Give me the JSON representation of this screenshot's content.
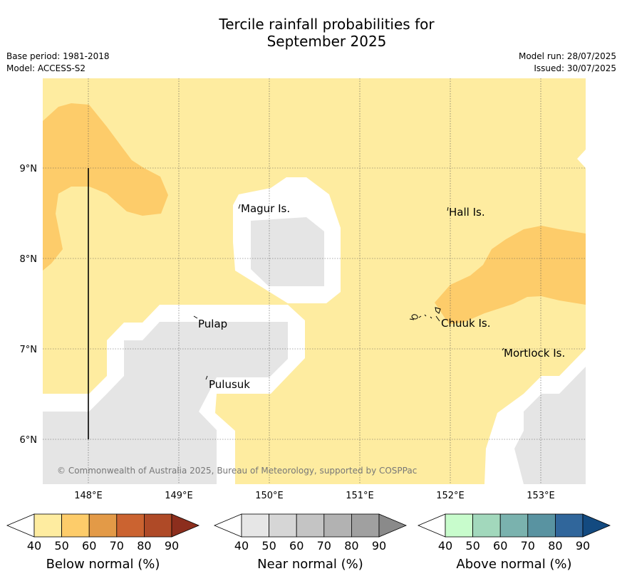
{
  "header": {
    "title_line1": "Tercile rainfall probabilities for",
    "title_line2": "September 2025",
    "base_period": "Base period: 1981-2018",
    "model": "Model: ACCESS-S2",
    "model_run": "Model run: 28/07/2025",
    "issued": "Issued: 30/07/2025"
  },
  "map": {
    "lat_labels": [
      "9°N",
      "8°N",
      "7°N",
      "6°N"
    ],
    "lon_labels": [
      "148°E",
      "149°E",
      "150°E",
      "151°E",
      "152°E",
      "153°E"
    ],
    "places": [
      {
        "name": "Magur Is."
      },
      {
        "name": "Hall Is."
      },
      {
        "name": "Pulap"
      },
      {
        "name": "Chuuk Is."
      },
      {
        "name": "Mortlock Is."
      },
      {
        "name": "Pulusuk"
      }
    ],
    "copyright": "© Commonwealth of Australia 2025, Bureau of Meteorology, supported by COSPPac",
    "colors": {
      "below_40_50": "#feeca0",
      "below_50_60": "#fdcc6a",
      "near_40_50": "#e5e5e5"
    }
  },
  "legend": {
    "below": {
      "title": "Below normal (%)",
      "ticks": [
        "40",
        "50",
        "60",
        "70",
        "80",
        "90"
      ],
      "colors": [
        "#feeca0",
        "#fdcc6a",
        "#e39a47",
        "#cb6330",
        "#af4a27",
        "#8c2e1d"
      ]
    },
    "near": {
      "title": "Near normal (%)",
      "ticks": [
        "40",
        "50",
        "60",
        "70",
        "80",
        "90"
      ],
      "colors": [
        "#e6e6e6",
        "#d6d6d6",
        "#c4c4c4",
        "#b2b2b2",
        "#a0a0a0",
        "#8a8a8a"
      ]
    },
    "above": {
      "title": "Above normal (%)",
      "ticks": [
        "40",
        "50",
        "60",
        "70",
        "80",
        "90"
      ],
      "colors": [
        "#c8fccc",
        "#a2d8bc",
        "#7ab2ae",
        "#5993a1",
        "#30669b",
        "#134a80"
      ]
    }
  }
}
